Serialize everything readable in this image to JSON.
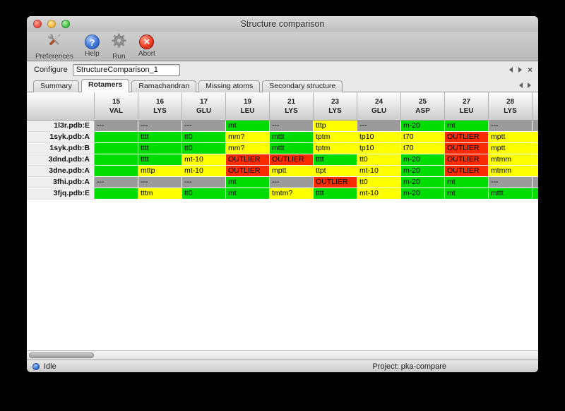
{
  "window": {
    "title": "Structure comparison"
  },
  "toolbar": {
    "items": [
      {
        "label": "Preferences",
        "icon": "tools-icon"
      },
      {
        "label": "Help",
        "icon": "help-icon"
      },
      {
        "label": "Run",
        "icon": "gear-icon"
      },
      {
        "label": "Abort",
        "icon": "abort-icon"
      }
    ]
  },
  "configure": {
    "label": "Configure",
    "value": "StructureComparison_1"
  },
  "tabs": {
    "items": [
      {
        "label": "Summary",
        "active": false
      },
      {
        "label": "Rotamers",
        "active": true
      },
      {
        "label": "Ramachandran",
        "active": false
      },
      {
        "label": "Missing atoms",
        "active": false
      },
      {
        "label": "Secondary structure",
        "active": false
      }
    ]
  },
  "colors": {
    "favored": "#00dc00",
    "allowed": "#ffff00",
    "outlier": "#fb2b00",
    "missing": "#9b9b9b"
  },
  "table": {
    "columns": [
      {
        "num": "15",
        "res": "VAL"
      },
      {
        "num": "16",
        "res": "LYS"
      },
      {
        "num": "17",
        "res": "GLU"
      },
      {
        "num": "19",
        "res": "LEU"
      },
      {
        "num": "21",
        "res": "LYS"
      },
      {
        "num": "23",
        "res": "LYS"
      },
      {
        "num": "24",
        "res": "GLU"
      },
      {
        "num": "25",
        "res": "ASP"
      },
      {
        "num": "27",
        "res": "LEU"
      },
      {
        "num": "28",
        "res": "LYS"
      },
      {
        "num": "",
        "res": ""
      }
    ],
    "rows": [
      {
        "label": "1l3r.pdb:E",
        "cells": [
          {
            "t": "---",
            "c": "missing"
          },
          {
            "t": "---",
            "c": "missing"
          },
          {
            "t": "---",
            "c": "missing"
          },
          {
            "t": "mt",
            "c": "favored"
          },
          {
            "t": "---",
            "c": "missing"
          },
          {
            "t": "tttp",
            "c": "allowed"
          },
          {
            "t": "---",
            "c": "missing"
          },
          {
            "t": "m-20",
            "c": "favored"
          },
          {
            "t": "mt",
            "c": "favored"
          },
          {
            "t": "---",
            "c": "missing"
          },
          {
            "t": "",
            "c": "missing"
          }
        ]
      },
      {
        "label": "1syk.pdb:A",
        "cells": [
          {
            "t": "",
            "c": "favored"
          },
          {
            "t": "tttt",
            "c": "favored"
          },
          {
            "t": "tt0",
            "c": "favored"
          },
          {
            "t": "mm?",
            "c": "allowed"
          },
          {
            "t": "mttt",
            "c": "favored"
          },
          {
            "t": "tptm",
            "c": "allowed"
          },
          {
            "t": "tp10",
            "c": "allowed"
          },
          {
            "t": "t70",
            "c": "allowed"
          },
          {
            "t": "OUTLIER",
            "c": "outlier"
          },
          {
            "t": "mptt",
            "c": "allowed"
          },
          {
            "t": "",
            "c": "allowed"
          }
        ]
      },
      {
        "label": "1syk.pdb:B",
        "cells": [
          {
            "t": "",
            "c": "favored"
          },
          {
            "t": "tttt",
            "c": "favored"
          },
          {
            "t": "tt0",
            "c": "favored"
          },
          {
            "t": "mm?",
            "c": "allowed"
          },
          {
            "t": "mttt",
            "c": "favored"
          },
          {
            "t": "tptm",
            "c": "allowed"
          },
          {
            "t": "tp10",
            "c": "allowed"
          },
          {
            "t": "t70",
            "c": "allowed"
          },
          {
            "t": "OUTLIER",
            "c": "outlier"
          },
          {
            "t": "mptt",
            "c": "allowed"
          },
          {
            "t": "",
            "c": "allowed"
          }
        ]
      },
      {
        "label": "3dnd.pdb:A",
        "cells": [
          {
            "t": "",
            "c": "favored"
          },
          {
            "t": "tttt",
            "c": "favored"
          },
          {
            "t": "mt-10",
            "c": "allowed"
          },
          {
            "t": "OUTLIER",
            "c": "outlier"
          },
          {
            "t": "OUTLIER",
            "c": "outlier"
          },
          {
            "t": "tttt",
            "c": "favored"
          },
          {
            "t": "tt0",
            "c": "allowed"
          },
          {
            "t": "m-20",
            "c": "favored"
          },
          {
            "t": "OUTLIER",
            "c": "outlier"
          },
          {
            "t": "mtmm",
            "c": "allowed"
          },
          {
            "t": "",
            "c": "allowed"
          }
        ]
      },
      {
        "label": "3dne.pdb:A",
        "cells": [
          {
            "t": "",
            "c": "favored"
          },
          {
            "t": "mttp",
            "c": "allowed"
          },
          {
            "t": "mt-10",
            "c": "allowed"
          },
          {
            "t": "OUTLIER",
            "c": "outlier"
          },
          {
            "t": "mptt",
            "c": "allowed"
          },
          {
            "t": "ttpt",
            "c": "allowed"
          },
          {
            "t": "mt-10",
            "c": "allowed"
          },
          {
            "t": "m-20",
            "c": "favored"
          },
          {
            "t": "OUTLIER",
            "c": "outlier"
          },
          {
            "t": "mtmm",
            "c": "allowed"
          },
          {
            "t": "",
            "c": "allowed"
          }
        ]
      },
      {
        "label": "3fhi.pdb:A",
        "cells": [
          {
            "t": "---",
            "c": "missing"
          },
          {
            "t": "---",
            "c": "missing"
          },
          {
            "t": "---",
            "c": "missing"
          },
          {
            "t": "mt",
            "c": "favored"
          },
          {
            "t": "---",
            "c": "missing"
          },
          {
            "t": "OUTLIER",
            "c": "outlier"
          },
          {
            "t": "tt0",
            "c": "allowed"
          },
          {
            "t": "m-20",
            "c": "favored"
          },
          {
            "t": "mt",
            "c": "favored"
          },
          {
            "t": "---",
            "c": "missing"
          },
          {
            "t": "",
            "c": "missing"
          }
        ]
      },
      {
        "label": "3fjq.pdb:E",
        "cells": [
          {
            "t": "",
            "c": "favored"
          },
          {
            "t": "tttm",
            "c": "allowed"
          },
          {
            "t": "tt0",
            "c": "favored"
          },
          {
            "t": "mt",
            "c": "favored"
          },
          {
            "t": "tmtm?",
            "c": "allowed"
          },
          {
            "t": "tttt",
            "c": "favored"
          },
          {
            "t": "mt-10",
            "c": "allowed"
          },
          {
            "t": "m-20",
            "c": "favored"
          },
          {
            "t": "mt",
            "c": "favored"
          },
          {
            "t": "mttt",
            "c": "favored"
          },
          {
            "t": "",
            "c": "favored"
          }
        ]
      }
    ]
  },
  "statusbar": {
    "status": "Idle",
    "project": "Project: pka-compare"
  }
}
